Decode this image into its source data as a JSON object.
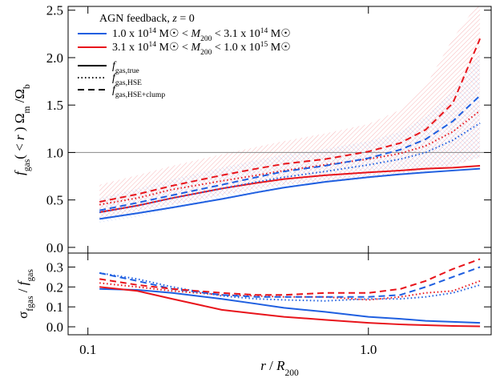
{
  "chart_data": [
    {
      "type": "line",
      "xscale": "log",
      "xlim": [
        0.085,
        2.74
      ],
      "ylim": [
        -0.06,
        2.54
      ],
      "yticks": [
        {
          "value": 0,
          "label": "0.0"
        },
        0.5,
        {
          "value": 1,
          "label": "1.0"
        },
        1.5,
        {
          "value": 2,
          "label": "2.0"
        },
        2.5
      ],
      "hline": 1,
      "ylabel": [
        {
          "text": "f",
          "italic": true
        },
        {
          "text": "gas",
          "shift": "sub"
        },
        {
          "text": "( < "
        },
        {
          "text": "r",
          "italic": true
        },
        {
          "text": " ) Ω"
        },
        {
          "text": "m",
          "shift": "sub"
        },
        {
          "text": " /Ω"
        },
        {
          "text": "b",
          "shift": "sub"
        }
      ],
      "legend": {
        "title": [
          {
            "text": "AGN feedback, "
          },
          {
            "text": "z",
            "italic": true
          },
          {
            "text": " = 0"
          }
        ],
        "masses": [
          {
            "color": "#1f5fe0",
            "label": [
              {
                "text": "1.0 x 10"
              },
              {
                "text": "14",
                "shift": "super"
              },
              {
                "text": " M☉ < "
              },
              {
                "text": "M",
                "italic": true
              },
              {
                "text": "200",
                "shift": "sub"
              },
              {
                "text": " < 3.1 x 10"
              },
              {
                "text": "14",
                "shift": "super"
              },
              {
                "text": " M☉"
              }
            ]
          },
          {
            "color": "#e8141b",
            "label": [
              {
                "text": "3.1 x 10"
              },
              {
                "text": "14",
                "shift": "super"
              },
              {
                "text": " M☉ < "
              },
              {
                "text": "M",
                "italic": true
              },
              {
                "text": "200",
                "shift": "sub"
              },
              {
                "text": " < 1.0 x 10"
              },
              {
                "text": "15",
                "shift": "super"
              },
              {
                "text": " M☉"
              }
            ]
          }
        ],
        "styles": [
          {
            "style": "solid",
            "label": [
              {
                "text": "f",
                "italic": true
              },
              {
                "text": "gas,true",
                "shift": "sub"
              }
            ]
          },
          {
            "style": "dotted",
            "label": [
              {
                "text": "f",
                "italic": true
              },
              {
                "text": "gas,HSE",
                "shift": "sub"
              }
            ]
          },
          {
            "style": "dashed",
            "label": [
              {
                "text": "f",
                "italic": true
              },
              {
                "text": "gas,HSE+clump",
                "shift": "sub"
              }
            ]
          }
        ]
      },
      "x": [
        0.11,
        0.15,
        0.2,
        0.3,
        0.4,
        0.5,
        0.7,
        1.0,
        1.3,
        1.6,
        2.0,
        2.5
      ],
      "bands": [
        {
          "color": "#e8141b",
          "lower": [
            0.3,
            0.38,
            0.45,
            0.55,
            0.62,
            0.66,
            0.7,
            0.74,
            0.78,
            0.82,
            0.86,
            0.95
          ],
          "upper": [
            0.66,
            0.76,
            0.86,
            0.98,
            1.06,
            1.12,
            1.2,
            1.3,
            1.45,
            1.7,
            2.2,
            2.6
          ]
        },
        {
          "color": "#1f5fe0",
          "lower": [
            0.26,
            0.32,
            0.4,
            0.5,
            0.56,
            0.62,
            0.68,
            0.72,
            0.76,
            0.8,
            0.86,
            0.95
          ],
          "upper": [
            0.52,
            0.62,
            0.72,
            0.84,
            0.92,
            0.98,
            1.04,
            1.12,
            1.22,
            1.38,
            1.65,
            2.05
          ]
        }
      ],
      "series": [
        {
          "color": "#1f5fe0",
          "style": "solid",
          "values": [
            0.3,
            0.36,
            0.42,
            0.51,
            0.58,
            0.63,
            0.69,
            0.74,
            0.77,
            0.79,
            0.81,
            0.83
          ]
        },
        {
          "color": "#e8141b",
          "style": "solid",
          "values": [
            0.37,
            0.44,
            0.52,
            0.62,
            0.68,
            0.72,
            0.76,
            0.79,
            0.81,
            0.83,
            0.84,
            0.86
          ]
        },
        {
          "color": "#1f5fe0",
          "style": "dotted",
          "values": [
            0.37,
            0.44,
            0.52,
            0.62,
            0.69,
            0.74,
            0.8,
            0.87,
            0.93,
            1.0,
            1.13,
            1.31
          ]
        },
        {
          "color": "#e8141b",
          "style": "dotted",
          "values": [
            0.45,
            0.52,
            0.61,
            0.7,
            0.76,
            0.81,
            0.87,
            0.93,
            0.99,
            1.07,
            1.22,
            1.44
          ]
        },
        {
          "color": "#1f5fe0",
          "style": "dashed",
          "values": [
            0.39,
            0.47,
            0.55,
            0.66,
            0.74,
            0.8,
            0.86,
            0.94,
            1.03,
            1.14,
            1.33,
            1.6
          ]
        },
        {
          "color": "#e8141b",
          "style": "dashed",
          "values": [
            0.48,
            0.56,
            0.65,
            0.76,
            0.83,
            0.88,
            0.93,
            1.01,
            1.1,
            1.24,
            1.52,
            2.2
          ]
        }
      ]
    },
    {
      "type": "line",
      "xscale": "log",
      "xlim": [
        0.085,
        2.74
      ],
      "ylim": [
        -0.04,
        0.37
      ],
      "xticks": [
        0.1,
        {
          "value": 1,
          "label": "1.0"
        }
      ],
      "yticks": [
        {
          "value": 0,
          "label": "0.0"
        },
        0.1,
        0.2,
        0.3
      ],
      "xlabel": [
        {
          "text": "r",
          "italic": true
        },
        {
          "text": " / "
        },
        {
          "text": "R",
          "italic": true
        },
        {
          "text": "200",
          "shift": "sub"
        }
      ],
      "ylabel": [
        {
          "text": "σ"
        },
        {
          "text": "fgas",
          "shift": "sub"
        },
        {
          "text": " / "
        },
        {
          "text": "f",
          "italic": true
        },
        {
          "text": "gas",
          "shift": "sub"
        }
      ],
      "x": [
        0.11,
        0.15,
        0.2,
        0.3,
        0.4,
        0.5,
        0.7,
        1.0,
        1.3,
        1.6,
        2.0,
        2.5
      ],
      "series": [
        {
          "color": "#1f5fe0",
          "style": "solid",
          "values": [
            0.19,
            0.185,
            0.17,
            0.14,
            0.115,
            0.095,
            0.075,
            0.05,
            0.04,
            0.03,
            0.025,
            0.02
          ]
        },
        {
          "color": "#e8141b",
          "style": "solid",
          "values": [
            0.2,
            0.18,
            0.14,
            0.085,
            0.065,
            0.05,
            0.035,
            0.02,
            0.012,
            0.008,
            0.004,
            0.002
          ]
        },
        {
          "color": "#1f5fe0",
          "style": "dotted",
          "values": [
            0.27,
            0.24,
            0.2,
            0.155,
            0.14,
            0.135,
            0.13,
            0.14,
            0.14,
            0.15,
            0.17,
            0.21
          ]
        },
        {
          "color": "#e8141b",
          "style": "dotted",
          "values": [
            0.22,
            0.2,
            0.18,
            0.16,
            0.155,
            0.15,
            0.15,
            0.135,
            0.15,
            0.17,
            0.18,
            0.23
          ]
        },
        {
          "color": "#1f5fe0",
          "style": "dashed",
          "values": [
            0.27,
            0.23,
            0.19,
            0.16,
            0.15,
            0.15,
            0.15,
            0.15,
            0.16,
            0.2,
            0.25,
            0.3
          ]
        },
        {
          "color": "#e8141b",
          "style": "dashed",
          "values": [
            0.24,
            0.21,
            0.19,
            0.17,
            0.16,
            0.16,
            0.17,
            0.17,
            0.19,
            0.23,
            0.29,
            0.34
          ]
        }
      ]
    }
  ]
}
